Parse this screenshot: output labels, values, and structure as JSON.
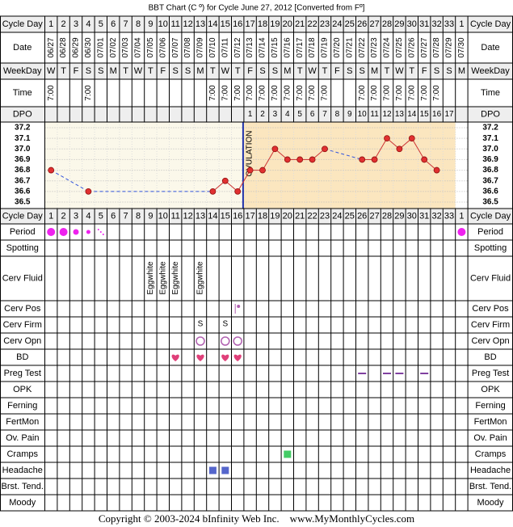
{
  "title": "BBT Chart (C º) for Cycle June 27, 2012  [Converted from Fº]",
  "row_labels": {
    "cycle_day": "Cycle Day",
    "date": "Date",
    "weekday": "WeekDay",
    "time": "Time",
    "dpo": "DPO",
    "period": "Period",
    "spotting": "Spotting",
    "cerv_fluid": "Cerv Fluid",
    "cerv_pos": "Cerv Pos",
    "cerv_firm": "Cerv Firm",
    "cerv_opn": "Cerv Opn",
    "bd": "BD",
    "preg_test": "Preg Test",
    "opk": "OPK",
    "ferning": "Ferning",
    "fertmon": "FertMon",
    "ov_pain": "Ov. Pain",
    "cramps": "Cramps",
    "headache": "Headache",
    "brst_tend": "Brst. Tend.",
    "moody": "Moody"
  },
  "cycle_days": [
    1,
    2,
    3,
    4,
    5,
    6,
    7,
    8,
    9,
    10,
    11,
    12,
    13,
    14,
    15,
    16,
    17,
    18,
    19,
    20,
    21,
    22,
    23,
    24,
    25,
    26,
    27,
    28,
    29,
    30,
    31,
    32,
    33,
    1
  ],
  "dates": [
    "06/27",
    "06/28",
    "06/29",
    "06/30",
    "07/01",
    "07/02",
    "07/03",
    "07/04",
    "07/05",
    "07/06",
    "07/07",
    "07/08",
    "07/09",
    "07/10",
    "07/11",
    "07/12",
    "07/13",
    "07/14",
    "07/15",
    "07/16",
    "07/17",
    "07/18",
    "07/19",
    "07/20",
    "07/21",
    "07/22",
    "07/23",
    "07/24",
    "07/25",
    "07/26",
    "07/27",
    "07/28",
    "07/29",
    "07/30"
  ],
  "weekdays": [
    "W",
    "T",
    "F",
    "S",
    "S",
    "M",
    "T",
    "W",
    "T",
    "F",
    "S",
    "S",
    "M",
    "T",
    "W",
    "T",
    "F",
    "S",
    "S",
    "M",
    "T",
    "W",
    "T",
    "F",
    "S",
    "S",
    "M",
    "T",
    "W",
    "T",
    "F",
    "S",
    "S",
    "M"
  ],
  "times": [
    "7:00",
    null,
    null,
    "7:00",
    null,
    null,
    null,
    null,
    null,
    null,
    null,
    null,
    null,
    "7:00",
    "7:00",
    "7:00",
    "7:00",
    "7:00",
    "7:00",
    "7:00",
    "7:00",
    "7:00",
    "7:00",
    null,
    null,
    "7:00",
    "7:00",
    "7:00",
    "7:00",
    "7:00",
    "7:00",
    "7:00",
    null,
    null
  ],
  "dpo": [
    null,
    null,
    null,
    null,
    null,
    null,
    null,
    null,
    null,
    null,
    null,
    null,
    null,
    null,
    null,
    null,
    1,
    2,
    3,
    4,
    5,
    6,
    7,
    8,
    9,
    10,
    11,
    12,
    13,
    14,
    15,
    16,
    17,
    null
  ],
  "temperatures": [
    36.8,
    null,
    null,
    36.6,
    null,
    null,
    null,
    null,
    null,
    null,
    null,
    null,
    null,
    36.6,
    36.7,
    36.6,
    36.8,
    36.8,
    37.0,
    36.9,
    36.9,
    36.9,
    37.0,
    null,
    null,
    36.9,
    36.9,
    37.1,
    37.0,
    37.1,
    36.9,
    36.8,
    null,
    null
  ],
  "temp_ticks": [
    {
      "value": 37.2,
      "label": "37.2"
    },
    {
      "value": 37.1,
      "label": "37.1"
    },
    {
      "value": 37.0,
      "label": "37.0"
    },
    {
      "value": 36.9,
      "label": "36.9"
    },
    {
      "value": 36.8,
      "label": "36.8"
    },
    {
      "value": 36.7,
      "label": "36.7"
    },
    {
      "value": 36.6,
      "label": "36.6"
    },
    {
      "value": 36.5,
      "label": "36.5"
    }
  ],
  "ovulation_label": "OVULATION",
  "cerv_fluid": [
    null,
    null,
    null,
    null,
    null,
    null,
    null,
    null,
    "Eggwhite",
    "Eggwhite",
    "Eggwhite",
    null,
    "Eggwhite",
    null,
    null,
    null,
    null,
    null,
    null,
    null,
    null,
    null,
    null,
    null,
    null,
    null,
    null,
    null,
    null,
    null,
    null,
    null,
    null,
    null
  ],
  "cerv_firm": [
    null,
    null,
    null,
    null,
    null,
    null,
    null,
    null,
    null,
    null,
    null,
    null,
    "S",
    null,
    "S",
    null,
    null,
    null,
    null,
    null,
    null,
    null,
    null,
    null,
    null,
    null,
    null,
    null,
    null,
    null,
    null,
    null,
    null,
    null
  ],
  "footer": "Copyright © 2003-2024 bInfinity Web Inc.    www.MyMonthlyCycles.com"
}
